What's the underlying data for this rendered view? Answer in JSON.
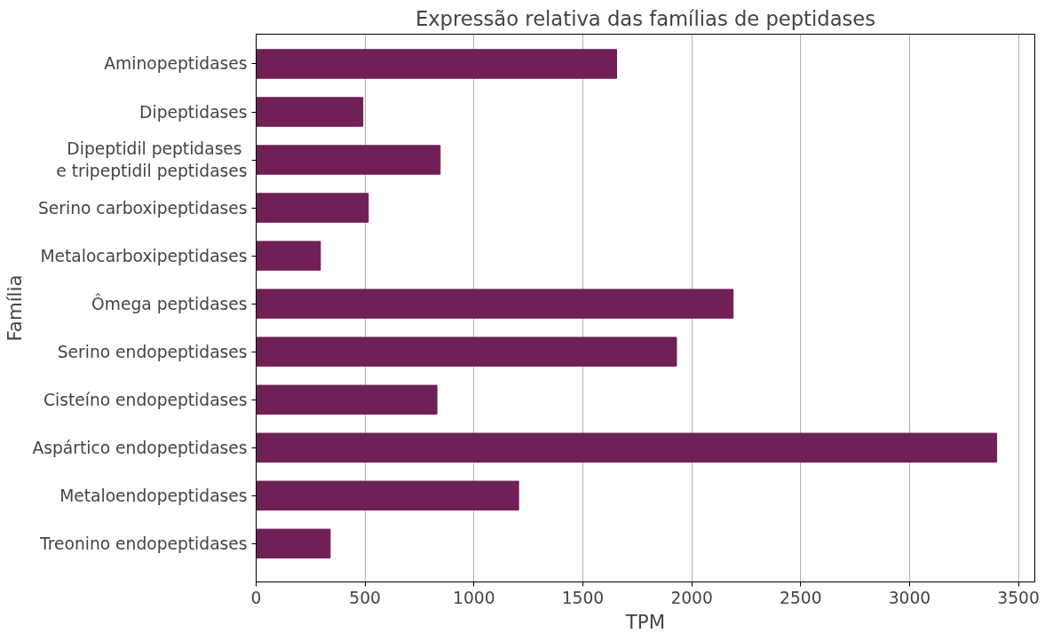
{
  "chart_data": {
    "type": "bar",
    "orientation": "horizontal",
    "title": "Expressão relativa das famílias de peptidases",
    "xlabel": "TPM",
    "ylabel": "Família",
    "categories": [
      "Aminopeptidases",
      "Dipeptidases",
      "Dipeptidil peptidases \ne tripeptidil peptidases",
      "Serino carboxipeptidases",
      "Metalocarboxipeptidases",
      "Ômega peptidases",
      "Serino endopeptidases",
      "Cisteíno endopeptidases",
      "Aspártico endopeptidases",
      "Metaloendopeptidases",
      "Treonino endopeptidases"
    ],
    "values": [
      1655,
      490,
      845,
      515,
      295,
      2190,
      1930,
      830,
      3400,
      1205,
      340
    ],
    "color": "#701f57",
    "xlim": [
      0,
      3575
    ],
    "xticks": [
      0,
      500,
      1000,
      1500,
      2000,
      2500,
      3000,
      3500
    ],
    "grid": "x"
  }
}
